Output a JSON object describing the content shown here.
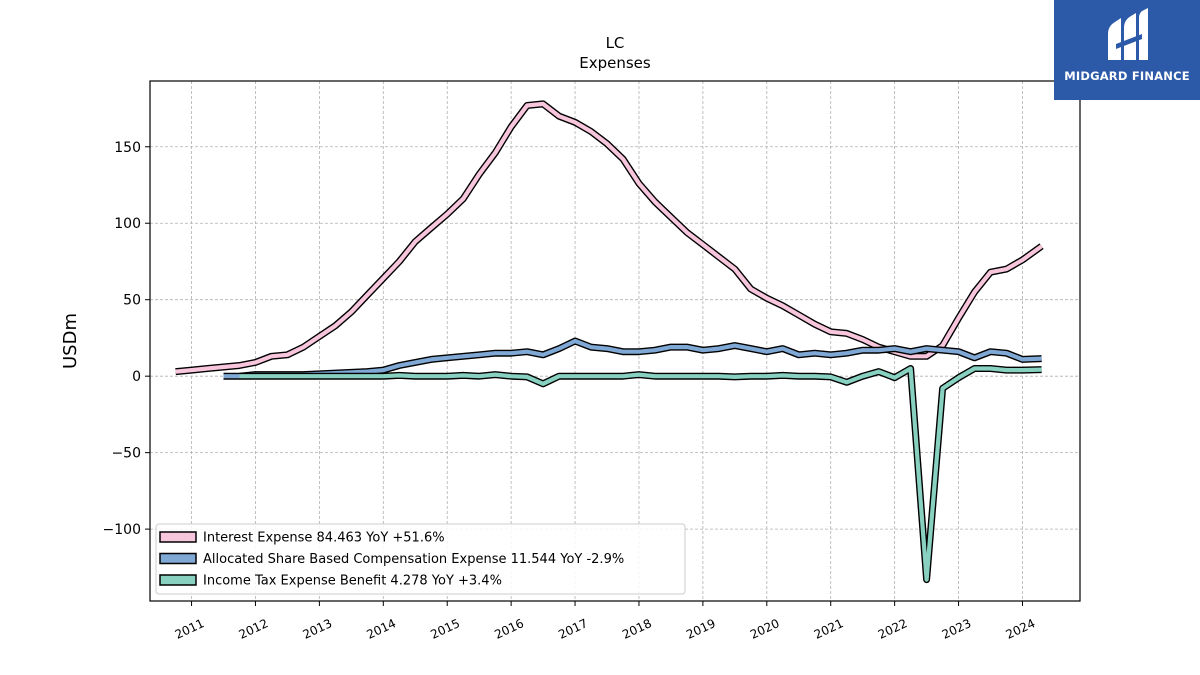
{
  "brand": {
    "name": "MIDGARD FINANCE",
    "logo_icon": "midgard-finance-logo",
    "color": "#2d5aa8"
  },
  "chart_data": {
    "type": "line",
    "title": "LC",
    "subtitle": "Expenses",
    "xlabel": "",
    "ylabel": "USDm",
    "xlim": [
      2010.35,
      2024.9
    ],
    "ylim": [
      -147,
      193
    ],
    "x_ticks": [
      "2011",
      "2012",
      "2013",
      "2014",
      "2015",
      "2016",
      "2017",
      "2018",
      "2019",
      "2020",
      "2021",
      "2022",
      "2023",
      "2024"
    ],
    "y_ticks": [
      -100,
      -50,
      0,
      50,
      100,
      150
    ],
    "y_tick_labels": [
      "−100",
      "−50",
      "0",
      "50",
      "100",
      "150"
    ],
    "grid": true,
    "legend_position": "lower-left",
    "series": [
      {
        "name": "Interest Expense",
        "legend_label": "Interest Expense  84.463 YoY +51.6%",
        "color": "#f7c6dc",
        "x": [
          2010.75,
          2011.0,
          2011.25,
          2011.5,
          2011.75,
          2012.0,
          2012.25,
          2012.5,
          2012.75,
          2013.0,
          2013.25,
          2013.5,
          2013.75,
          2014.0,
          2014.25,
          2014.5,
          2014.75,
          2015.0,
          2015.25,
          2015.5,
          2015.75,
          2016.0,
          2016.25,
          2016.5,
          2016.75,
          2017.0,
          2017.25,
          2017.5,
          2017.75,
          2018.0,
          2018.25,
          2018.5,
          2018.75,
          2019.0,
          2019.25,
          2019.5,
          2019.75,
          2020.0,
          2020.25,
          2020.5,
          2020.75,
          2021.0,
          2021.25,
          2021.5,
          2021.75,
          2022.0,
          2022.25,
          2022.5,
          2022.75,
          2023.0,
          2023.25,
          2023.5,
          2023.75,
          2024.0,
          2024.3
        ],
        "y": [
          3,
          4,
          5,
          6,
          7,
          9,
          13,
          14,
          19,
          26,
          33,
          42,
          53,
          64,
          75,
          88,
          97,
          106,
          116,
          132,
          146,
          163,
          177,
          178,
          170,
          166,
          160,
          152,
          142,
          126,
          114,
          104,
          94,
          86,
          78,
          70,
          57,
          51,
          46,
          40,
          34,
          29,
          28,
          24,
          19,
          16,
          13,
          13,
          20,
          38,
          55,
          68,
          70,
          76,
          85
        ]
      },
      {
        "name": "Allocated Share Based Compensation Expense",
        "legend_label": "Allocated Share Based Compensation Expense  11.544 YoY -2.9%",
        "color": "#7fa8d4",
        "x": [
          2011.5,
          2011.75,
          2012.0,
          2012.25,
          2012.5,
          2012.75,
          2013.0,
          2013.25,
          2013.5,
          2013.75,
          2014.0,
          2014.25,
          2014.5,
          2014.75,
          2015.0,
          2015.25,
          2015.5,
          2015.75,
          2016.0,
          2016.25,
          2016.5,
          2016.75,
          2017.0,
          2017.25,
          2017.5,
          2017.75,
          2018.0,
          2018.25,
          2018.5,
          2018.75,
          2019.0,
          2019.25,
          2019.5,
          2019.75,
          2020.0,
          2020.25,
          2020.5,
          2020.75,
          2021.0,
          2021.25,
          2021.5,
          2021.75,
          2022.0,
          2022.25,
          2022.5,
          2022.75,
          2023.0,
          2023.25,
          2023.5,
          2023.75,
          2024.0,
          2024.3
        ],
        "y": [
          0,
          0,
          1,
          1,
          1,
          1,
          1.5,
          2,
          2.5,
          3,
          4,
          7,
          9,
          11,
          12,
          13,
          14,
          15,
          15,
          16,
          14,
          18,
          23,
          19,
          18,
          16,
          16,
          17,
          19,
          19,
          17,
          18,
          20,
          18,
          16,
          18,
          14,
          15,
          14,
          15,
          17,
          17,
          18,
          16,
          18,
          17,
          16,
          12,
          16,
          15,
          11,
          11.5
        ]
      },
      {
        "name": "Income Tax Expense Benefit",
        "legend_label": "Income Tax Expense Benefit  4.278 YoY +3.4%",
        "color": "#88d1c1",
        "x": [
          2011.75,
          2012.0,
          2012.25,
          2012.5,
          2012.75,
          2013.0,
          2013.25,
          2013.5,
          2013.75,
          2014.0,
          2014.25,
          2014.5,
          2014.75,
          2015.0,
          2015.25,
          2015.5,
          2015.75,
          2016.0,
          2016.25,
          2016.5,
          2016.75,
          2017.0,
          2017.25,
          2017.5,
          2017.75,
          2018.0,
          2018.25,
          2018.5,
          2018.75,
          2019.0,
          2019.25,
          2019.5,
          2019.75,
          2020.0,
          2020.25,
          2020.5,
          2020.75,
          2021.0,
          2021.25,
          2021.5,
          2021.75,
          2022.0,
          2022.25,
          2022.5,
          2022.75,
          2023.0,
          2023.25,
          2023.5,
          2023.75,
          2024.0,
          2024.3
        ],
        "y": [
          0,
          0,
          0,
          0,
          0,
          0,
          0,
          0,
          0,
          0,
          0.5,
          0,
          0,
          0,
          0.5,
          0,
          1,
          0,
          -0.5,
          -5,
          0,
          0,
          0,
          0,
          0,
          1,
          0,
          0,
          0,
          0,
          0,
          -0.5,
          0,
          0,
          0.5,
          0,
          0,
          -0.5,
          -4,
          0,
          3,
          -1,
          5,
          -133,
          -8,
          -1,
          5,
          5,
          4,
          4,
          4.3
        ]
      }
    ]
  }
}
